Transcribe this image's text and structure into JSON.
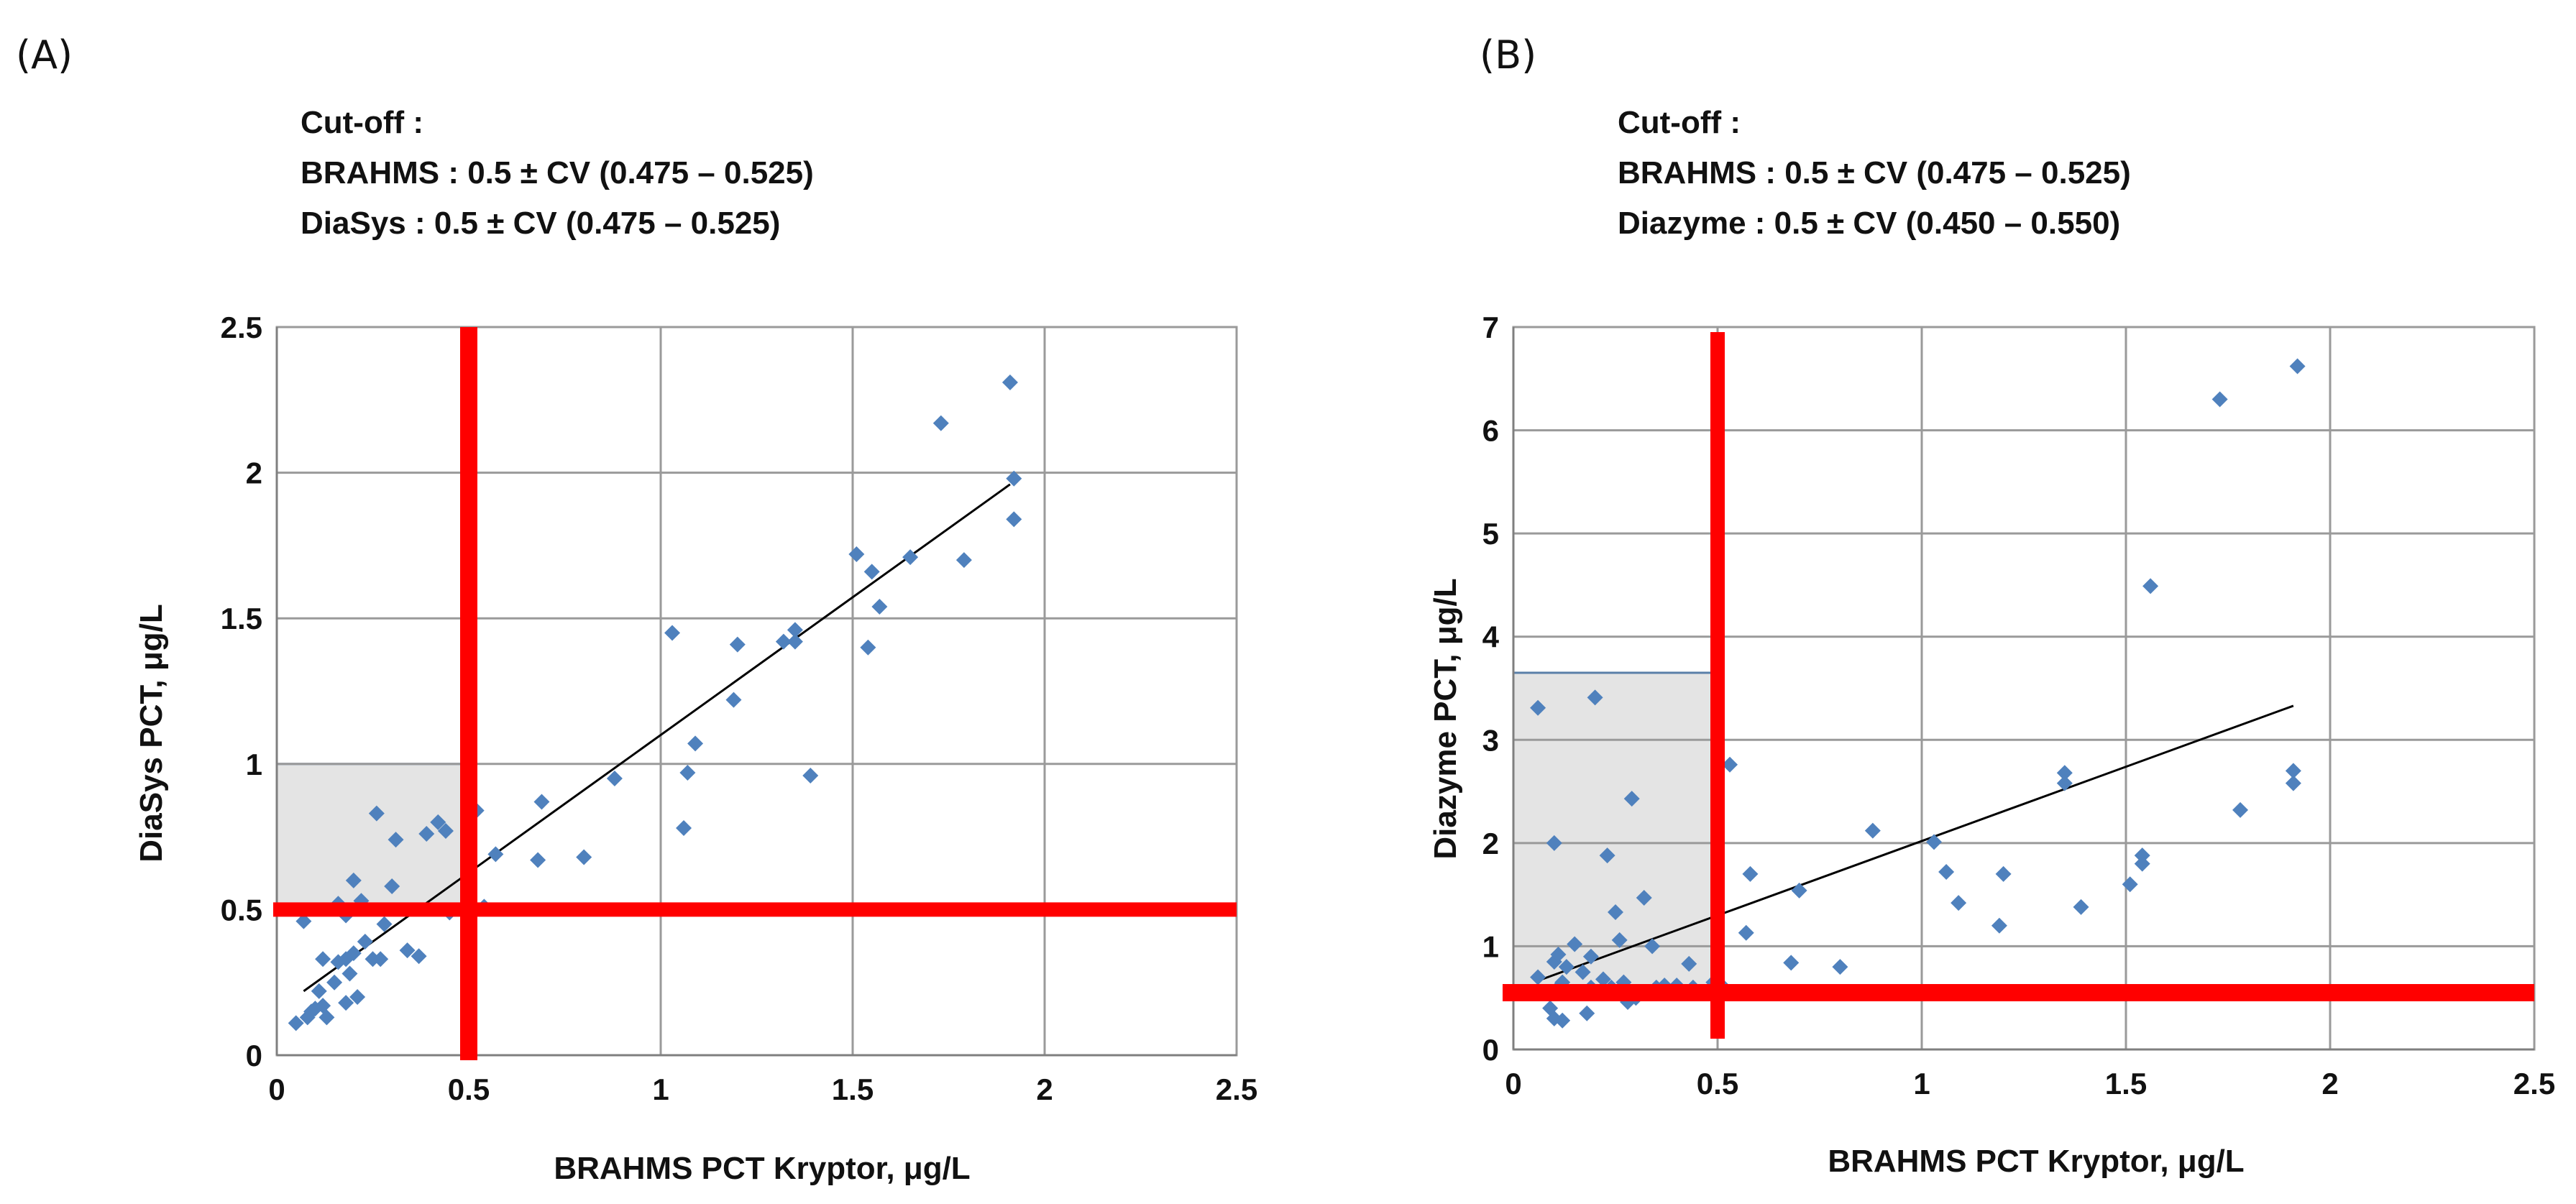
{
  "figure": {
    "colors": {
      "point": "#4f81bd",
      "cutoff_line": "#ff0000",
      "trend": "#000000",
      "grid": "#9a9a9a",
      "shade": "#e4e4e4"
    }
  },
  "chart_data": [
    {
      "type": "scatter",
      "panel_label": "(A)",
      "annotation": {
        "header": "Cut-off :",
        "lines": [
          "BRAHMS : 0.5 ± CV (0.475 – 0.525)",
          "DiaSys :  0.5 ± CV (0.475 – 0.525)"
        ]
      },
      "xlabel": "BRAHMS PCT Kryptor, μg/L",
      "ylabel": "DiaSys PCT, μg/L",
      "xlim": [
        0,
        2.5
      ],
      "ylim": [
        0,
        2.5
      ],
      "xticks": [
        0,
        0.5,
        1,
        1.5,
        2,
        2.5
      ],
      "xtick_labels": [
        "0",
        "0.5",
        "1",
        "1.5",
        "2",
        "2.5"
      ],
      "yticks": [
        0,
        0.5,
        1,
        1.5,
        2,
        2.5
      ],
      "ytick_labels": [
        "0",
        "0.5",
        "1",
        "1.5",
        "2",
        "2.5"
      ],
      "grid": true,
      "cutoff_lines": {
        "x": 0.5,
        "y": 0.5
      },
      "shaded_region": {
        "x": [
          0,
          0.5
        ],
        "y": [
          0.5,
          1.0
        ]
      },
      "trendline": {
        "x": [
          0.07,
          1.91
        ],
        "y": [
          0.22,
          1.96
        ]
      },
      "points": {
        "x": [
          0.05,
          0.08,
          0.09,
          0.1,
          0.11,
          0.12,
          0.13,
          0.12,
          0.15,
          0.16,
          0.18,
          0.18,
          0.19,
          0.2,
          0.21,
          0.23,
          0.25,
          0.27,
          0.18,
          0.2,
          0.22,
          0.28,
          0.3,
          0.34,
          0.37,
          0.07,
          0.16,
          0.26,
          0.31,
          0.39,
          0.42,
          0.44,
          0.45,
          0.52,
          0.54,
          0.57,
          0.68,
          0.69,
          0.8,
          0.88,
          1.03,
          1.06,
          1.07,
          1.09,
          1.19,
          1.2,
          1.32,
          1.35,
          1.35,
          1.39,
          1.51,
          1.54,
          1.55,
          1.57,
          1.65,
          1.73,
          1.79,
          1.91,
          1.92,
          1.92
        ],
        "y": [
          0.11,
          0.13,
          0.15,
          0.16,
          0.22,
          0.17,
          0.13,
          0.33,
          0.25,
          0.32,
          0.18,
          0.33,
          0.28,
          0.35,
          0.2,
          0.39,
          0.33,
          0.33,
          0.48,
          0.6,
          0.53,
          0.45,
          0.58,
          0.36,
          0.34,
          0.46,
          0.52,
          0.83,
          0.74,
          0.76,
          0.8,
          0.77,
          0.49,
          0.84,
          0.51,
          0.69,
          0.67,
          0.87,
          0.68,
          0.95,
          1.45,
          0.78,
          0.97,
          1.07,
          1.22,
          1.41,
          1.42,
          1.46,
          1.42,
          0.96,
          1.72,
          1.4,
          1.66,
          1.54,
          1.71,
          2.17,
          1.7,
          2.31,
          1.84,
          1.98
        ]
      }
    },
    {
      "type": "scatter",
      "panel_label": "(B)",
      "annotation": {
        "header": "Cut-off :",
        "lines": [
          "BRAHMS : 0.5 ± CV (0.475 – 0.525)",
          "Diazyme :  0.5 ± CV (0.450 – 0.550)"
        ]
      },
      "xlabel": "BRAHMS PCT Kryptor, μg/L",
      "ylabel": "Diazyme PCT, μg/L",
      "xlim": [
        0,
        2.5
      ],
      "ylim": [
        0,
        7
      ],
      "xticks": [
        0,
        0.5,
        1,
        1.5,
        2,
        2.5
      ],
      "xtick_labels": [
        "0",
        "0.5",
        "1",
        "1.5",
        "2",
        "2.5"
      ],
      "yticks": [
        0,
        1,
        2,
        3,
        4,
        5,
        6,
        7
      ],
      "ytick_labels": [
        "0",
        "1",
        "2",
        "3",
        "4",
        "5",
        "6",
        "7"
      ],
      "grid": true,
      "cutoff_lines": {
        "x": 0.5,
        "y": 0.55
      },
      "shaded_region": {
        "x": [
          0,
          0.5
        ],
        "y": [
          0.55,
          3.65
        ]
      },
      "trendline": {
        "x": [
          0.07,
          1.91
        ],
        "y": [
          0.68,
          3.33
        ]
      },
      "points": {
        "x": [
          0.06,
          0.09,
          0.1,
          0.1,
          0.11,
          0.11,
          0.12,
          0.12,
          0.13,
          0.15,
          0.17,
          0.18,
          0.19,
          0.19,
          0.2,
          0.22,
          0.23,
          0.24,
          0.25,
          0.26,
          0.27,
          0.28,
          0.29,
          0.3,
          0.32,
          0.34,
          0.35,
          0.37,
          0.4,
          0.43,
          0.44,
          0.49,
          0.51,
          0.53,
          0.57,
          0.58,
          0.68,
          0.7,
          0.8,
          0.88,
          1.03,
          1.06,
          1.09,
          1.19,
          1.2,
          1.35,
          1.35,
          1.39,
          1.51,
          1.54,
          1.54,
          1.56,
          1.73,
          1.78,
          1.91,
          1.91,
          1.92,
          0.06,
          0.2,
          0.27,
          0.1
        ],
        "y": [
          0.7,
          0.4,
          0.85,
          0.3,
          0.6,
          0.92,
          0.65,
          0.28,
          0.8,
          1.02,
          0.75,
          0.35,
          0.9,
          0.6,
          0.55,
          0.68,
          1.88,
          0.6,
          1.33,
          1.06,
          0.65,
          0.46,
          2.43,
          0.5,
          1.47,
          1.0,
          0.6,
          0.62,
          0.62,
          0.83,
          0.6,
          0.65,
          0.62,
          2.76,
          1.13,
          1.7,
          0.84,
          1.54,
          0.8,
          2.12,
          2.01,
          1.72,
          1.42,
          1.2,
          1.7,
          2.68,
          2.58,
          1.38,
          1.6,
          1.8,
          1.88,
          4.49,
          6.3,
          2.32,
          2.58,
          2.7,
          6.62,
          3.31,
          3.41,
          0.62,
          2.0
        ]
      }
    }
  ]
}
